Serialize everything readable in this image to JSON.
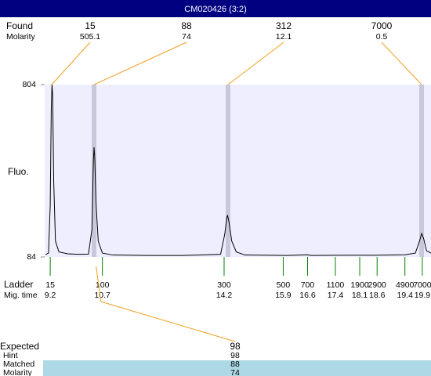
{
  "header": {
    "title": "CM020426 (3:2)"
  },
  "found": {
    "label": "Found",
    "molarity_label": "Molarity",
    "sizes": [
      15,
      88,
      312,
      7000
    ],
    "molarity": [
      505.1,
      74,
      12.1,
      0.5
    ]
  },
  "chart_data": {
    "type": "line",
    "y_label": "Fluo.",
    "color": "#000000",
    "x": [
      9.07,
      9.15,
      9.2,
      9.23,
      9.25,
      9.27,
      9.3,
      9.35,
      9.45,
      9.7,
      10.0,
      10.3,
      10.4,
      10.44,
      10.46,
      10.48,
      10.52,
      10.58,
      10.7,
      11,
      12,
      13,
      14.1,
      14.22,
      14.28,
      14.3,
      14.34,
      14.42,
      14.55,
      14.8,
      16,
      16.6,
      16.7,
      17.5,
      18.5,
      19.4,
      19.7,
      19.82,
      19.88,
      19.94,
      20.02,
      20.15
    ],
    "values": [
      94,
      100,
      300,
      700,
      804,
      760,
      400,
      150,
      105,
      97,
      95,
      96,
      200,
      480,
      542,
      500,
      300,
      150,
      100,
      92,
      90,
      90,
      95,
      180,
      250,
      257,
      230,
      150,
      105,
      92,
      90,
      93,
      90,
      91,
      91,
      93,
      100,
      150,
      182,
      160,
      110,
      100
    ],
    "xlim": [
      9.04,
      20.15
    ],
    "ylim": [
      84,
      804
    ],
    "yticks": [
      84,
      804
    ]
  },
  "ladder": {
    "label": "Ladder",
    "time_label": "Mig. time",
    "sizes": [
      15,
      100,
      300,
      500,
      700,
      1100,
      1900,
      2900,
      4900,
      7000
    ],
    "times": [
      9.2,
      10.7,
      14.2,
      15.9,
      16.6,
      17.4,
      18.1,
      18.6,
      19.4,
      19.9
    ]
  },
  "expected": {
    "label": "Expected",
    "hint_label": "Hint",
    "matched_label": "Matched",
    "molarity_label": "Molarity",
    "expected": 98,
    "hint": 98,
    "matched": 88,
    "molarity": 74
  }
}
